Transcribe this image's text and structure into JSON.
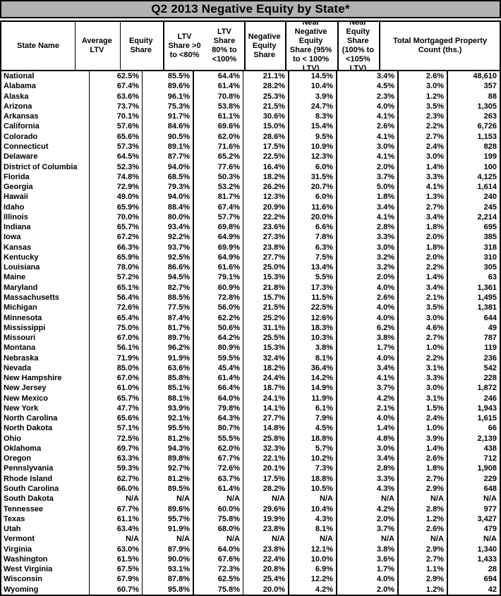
{
  "title": "Q2 2013 Negative Equity by State*",
  "columns": [
    "State Name",
    "Average LTV",
    "Equity Share",
    "LTV Share >0 to <80%",
    "LTV Share 80% to <100%",
    "Negative Equity Share",
    "Near Negative Equity Share (95% to < 100% LTV)",
    "Near Equity Share (100% to <105% LTV)",
    "Total Mortgaged Property Count (ths.)"
  ],
  "rows": [
    [
      "National",
      "62.5%",
      "85.5%",
      "64.4%",
      "21.1%",
      "14.5%",
      "3.4%",
      "2.6%",
      "48,610"
    ],
    [
      "Alabama",
      "67.4%",
      "89.6%",
      "61.4%",
      "28.2%",
      "10.4%",
      "4.5%",
      "3.0%",
      "357"
    ],
    [
      "Alaska",
      "63.6%",
      "96.1%",
      "70.8%",
      "25.3%",
      "3.9%",
      "2.3%",
      "1.2%",
      "88"
    ],
    [
      "Arizona",
      "73.7%",
      "75.3%",
      "53.8%",
      "21.5%",
      "24.7%",
      "4.0%",
      "3.5%",
      "1,305"
    ],
    [
      "Arkansas",
      "70.1%",
      "91.7%",
      "61.1%",
      "30.6%",
      "8.3%",
      "4.1%",
      "2.3%",
      "263"
    ],
    [
      "California",
      "57.6%",
      "84.6%",
      "69.6%",
      "15.0%",
      "15.4%",
      "2.6%",
      "2.2%",
      "6,726"
    ],
    [
      "Colorado",
      "65.6%",
      "90.5%",
      "62.0%",
      "28.6%",
      "9.5%",
      "4.1%",
      "2.7%",
      "1,153"
    ],
    [
      "Connecticut",
      "57.3%",
      "89.1%",
      "71.6%",
      "17.5%",
      "10.9%",
      "3.0%",
      "2.4%",
      "828"
    ],
    [
      "Delaware",
      "64.5%",
      "87.7%",
      "65.2%",
      "22.5%",
      "12.3%",
      "4.1%",
      "3.0%",
      "199"
    ],
    [
      "District of Columbia",
      "52.3%",
      "94.0%",
      "77.6%",
      "16.4%",
      "6.0%",
      "2.0%",
      "1.4%",
      "100"
    ],
    [
      "Florida",
      "74.8%",
      "68.5%",
      "50.3%",
      "18.2%",
      "31.5%",
      "3.7%",
      "3.3%",
      "4,125"
    ],
    [
      "Georgia",
      "72.9%",
      "79.3%",
      "53.2%",
      "26.2%",
      "20.7%",
      "5.0%",
      "4.1%",
      "1,614"
    ],
    [
      "Hawaii",
      "49.0%",
      "94.0%",
      "81.7%",
      "12.3%",
      "6.0%",
      "1.8%",
      "1.3%",
      "240"
    ],
    [
      "Idaho",
      "65.9%",
      "88.4%",
      "67.4%",
      "20.9%",
      "11.6%",
      "3.4%",
      "2.7%",
      "245"
    ],
    [
      "Illinois",
      "70.0%",
      "80.0%",
      "57.7%",
      "22.2%",
      "20.0%",
      "4.1%",
      "3.4%",
      "2,214"
    ],
    [
      "Indiana",
      "65.7%",
      "93.4%",
      "69.8%",
      "23.6%",
      "6.6%",
      "2.8%",
      "1.8%",
      "695"
    ],
    [
      "Iowa",
      "67.2%",
      "92.2%",
      "64.9%",
      "27.3%",
      "7.8%",
      "3.3%",
      "2.0%",
      "385"
    ],
    [
      "Kansas",
      "66.3%",
      "93.7%",
      "69.9%",
      "23.8%",
      "6.3%",
      "3.0%",
      "1.8%",
      "318"
    ],
    [
      "Kentucky",
      "65.9%",
      "92.5%",
      "64.9%",
      "27.7%",
      "7.5%",
      "3.2%",
      "2.0%",
      "310"
    ],
    [
      "Louisiana",
      "78.0%",
      "86.6%",
      "61.6%",
      "25.0%",
      "13.4%",
      "3.2%",
      "2.2%",
      "305"
    ],
    [
      "Maine",
      "57.2%",
      "94.5%",
      "79.1%",
      "15.3%",
      "5.5%",
      "2.0%",
      "1.4%",
      "63"
    ],
    [
      "Maryland",
      "65.1%",
      "82.7%",
      "60.9%",
      "21.8%",
      "17.3%",
      "4.0%",
      "3.4%",
      "1,361"
    ],
    [
      "Massachusetts",
      "56.4%",
      "88.5%",
      "72.8%",
      "15.7%",
      "11.5%",
      "2.6%",
      "2.1%",
      "1,495"
    ],
    [
      "Michigan",
      "72.6%",
      "77.5%",
      "56.0%",
      "21.5%",
      "22.5%",
      "4.0%",
      "3.5%",
      "1,381"
    ],
    [
      "Minnesota",
      "65.4%",
      "87.4%",
      "62.2%",
      "25.2%",
      "12.6%",
      "4.0%",
      "3.0%",
      "644"
    ],
    [
      "Mississippi",
      "75.0%",
      "81.7%",
      "50.6%",
      "31.1%",
      "18.3%",
      "6.2%",
      "4.6%",
      "49"
    ],
    [
      "Missouri",
      "67.0%",
      "89.7%",
      "64.2%",
      "25.5%",
      "10.3%",
      "3.8%",
      "2.7%",
      "787"
    ],
    [
      "Montana",
      "56.1%",
      "96.2%",
      "80.9%",
      "15.3%",
      "3.8%",
      "1.7%",
      "1.0%",
      "119"
    ],
    [
      "Nebraska",
      "71.9%",
      "91.9%",
      "59.5%",
      "32.4%",
      "8.1%",
      "4.0%",
      "2.2%",
      "236"
    ],
    [
      "Nevada",
      "85.0%",
      "63.6%",
      "45.4%",
      "18.2%",
      "36.4%",
      "3.4%",
      "3.1%",
      "542"
    ],
    [
      "New Hampshire",
      "67.0%",
      "85.8%",
      "61.4%",
      "24.4%",
      "14.2%",
      "4.1%",
      "3.3%",
      "228"
    ],
    [
      "New Jersey",
      "61.0%",
      "85.1%",
      "66.4%",
      "18.7%",
      "14.9%",
      "3.7%",
      "3.0%",
      "1,872"
    ],
    [
      "New Mexico",
      "65.7%",
      "88.1%",
      "64.0%",
      "24.1%",
      "11.9%",
      "4.2%",
      "3.1%",
      "246"
    ],
    [
      "New York",
      "47.7%",
      "93.9%",
      "79.8%",
      "14.1%",
      "6.1%",
      "2.1%",
      "1.5%",
      "1,943"
    ],
    [
      "North Carolina",
      "65.6%",
      "92.1%",
      "64.3%",
      "27.7%",
      "7.9%",
      "4.0%",
      "2.4%",
      "1,615"
    ],
    [
      "North Dakota",
      "57.1%",
      "95.5%",
      "80.7%",
      "14.8%",
      "4.5%",
      "1.4%",
      "1.0%",
      "66"
    ],
    [
      "Ohio",
      "72.5%",
      "81.2%",
      "55.5%",
      "25.8%",
      "18.8%",
      "4.8%",
      "3.9%",
      "2,139"
    ],
    [
      "Oklahoma",
      "69.7%",
      "94.3%",
      "62.0%",
      "32.3%",
      "5.7%",
      "3.0%",
      "1.4%",
      "438"
    ],
    [
      "Oregon",
      "63.3%",
      "89.8%",
      "67.7%",
      "22.1%",
      "10.2%",
      "3.4%",
      "2.6%",
      "712"
    ],
    [
      "Pennslyvania",
      "59.3%",
      "92.7%",
      "72.6%",
      "20.1%",
      "7.3%",
      "2.8%",
      "1.8%",
      "1,908"
    ],
    [
      "Rhode Island",
      "62.7%",
      "81.2%",
      "63.7%",
      "17.5%",
      "18.8%",
      "3.3%",
      "2.7%",
      "229"
    ],
    [
      "South Carolina",
      "66.0%",
      "89.5%",
      "61.4%",
      "28.2%",
      "10.5%",
      "4.3%",
      "2.9%",
      "648"
    ],
    [
      "South Dakota",
      "N/A",
      "N/A",
      "N/A",
      "N/A",
      "N/A",
      "N/A",
      "N/A",
      "N/A"
    ],
    [
      "Tennessee",
      "67.7%",
      "89.6%",
      "60.0%",
      "29.6%",
      "10.4%",
      "4.2%",
      "2.8%",
      "977"
    ],
    [
      "Texas",
      "61.1%",
      "95.7%",
      "75.8%",
      "19.9%",
      "4.3%",
      "2.0%",
      "1.2%",
      "3,427"
    ],
    [
      "Utah",
      "63.4%",
      "91.9%",
      "68.0%",
      "23.8%",
      "8.1%",
      "3.7%",
      "2.6%",
      "479"
    ],
    [
      "Vermont",
      "N/A",
      "N/A",
      "N/A",
      "N/A",
      "N/A",
      "N/A",
      "N/A",
      "N/A"
    ],
    [
      "Virginia",
      "63.0%",
      "87.9%",
      "64.0%",
      "23.8%",
      "12.1%",
      "3.8%",
      "2.9%",
      "1,340"
    ],
    [
      "Washington",
      "61.5%",
      "90.0%",
      "67.6%",
      "22.4%",
      "10.0%",
      "3.6%",
      "2.7%",
      "1,433"
    ],
    [
      "West Virginia",
      "67.5%",
      "93.1%",
      "72.3%",
      "20.8%",
      "6.9%",
      "1.7%",
      "1.1%",
      "28"
    ],
    [
      "Wisconsin",
      "67.9%",
      "87.8%",
      "62.5%",
      "25.4%",
      "12.2%",
      "4.0%",
      "2.9%",
      "694"
    ],
    [
      "Wyoming",
      "60.7%",
      "95.8%",
      "75.8%",
      "20.0%",
      "4.2%",
      "2.0%",
      "1.2%",
      "42"
    ]
  ],
  "colors": {
    "title_bg": "#b2b2b2",
    "border": "#000000",
    "text": "#000000",
    "table_bg": "#ffffff"
  }
}
